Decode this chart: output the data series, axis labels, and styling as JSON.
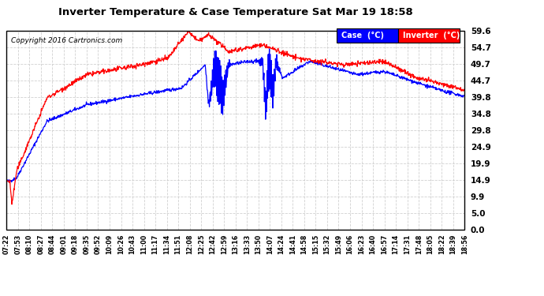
{
  "title": "Inverter Temperature & Case Temperature Sat Mar 19 18:58",
  "copyright": "Copyright 2016 Cartronics.com",
  "background_color": "#ffffff",
  "plot_bg_color": "#ffffff",
  "grid_color": "#cccccc",
  "case_color": "#0000ff",
  "inverter_color": "#ff0000",
  "yticks": [
    0.0,
    5.0,
    9.9,
    14.9,
    19.9,
    24.9,
    29.8,
    34.8,
    39.8,
    44.7,
    49.7,
    54.7,
    59.6
  ],
  "ylim": [
    0.0,
    62.0
  ],
  "xtick_labels": [
    "07:22",
    "07:53",
    "08:10",
    "08:27",
    "08:44",
    "09:01",
    "09:18",
    "09:35",
    "09:52",
    "10:09",
    "10:26",
    "10:43",
    "11:00",
    "11:17",
    "11:34",
    "11:51",
    "12:08",
    "12:25",
    "12:42",
    "12:59",
    "13:16",
    "13:33",
    "13:50",
    "14:07",
    "14:24",
    "14:41",
    "14:58",
    "15:15",
    "15:32",
    "15:49",
    "16:06",
    "16:23",
    "16:40",
    "16:57",
    "17:14",
    "17:31",
    "17:48",
    "18:05",
    "18:22",
    "18:39",
    "18:56"
  ],
  "legend_case_label": "Case  (°C)",
  "legend_inverter_label": "Inverter  (°C)"
}
